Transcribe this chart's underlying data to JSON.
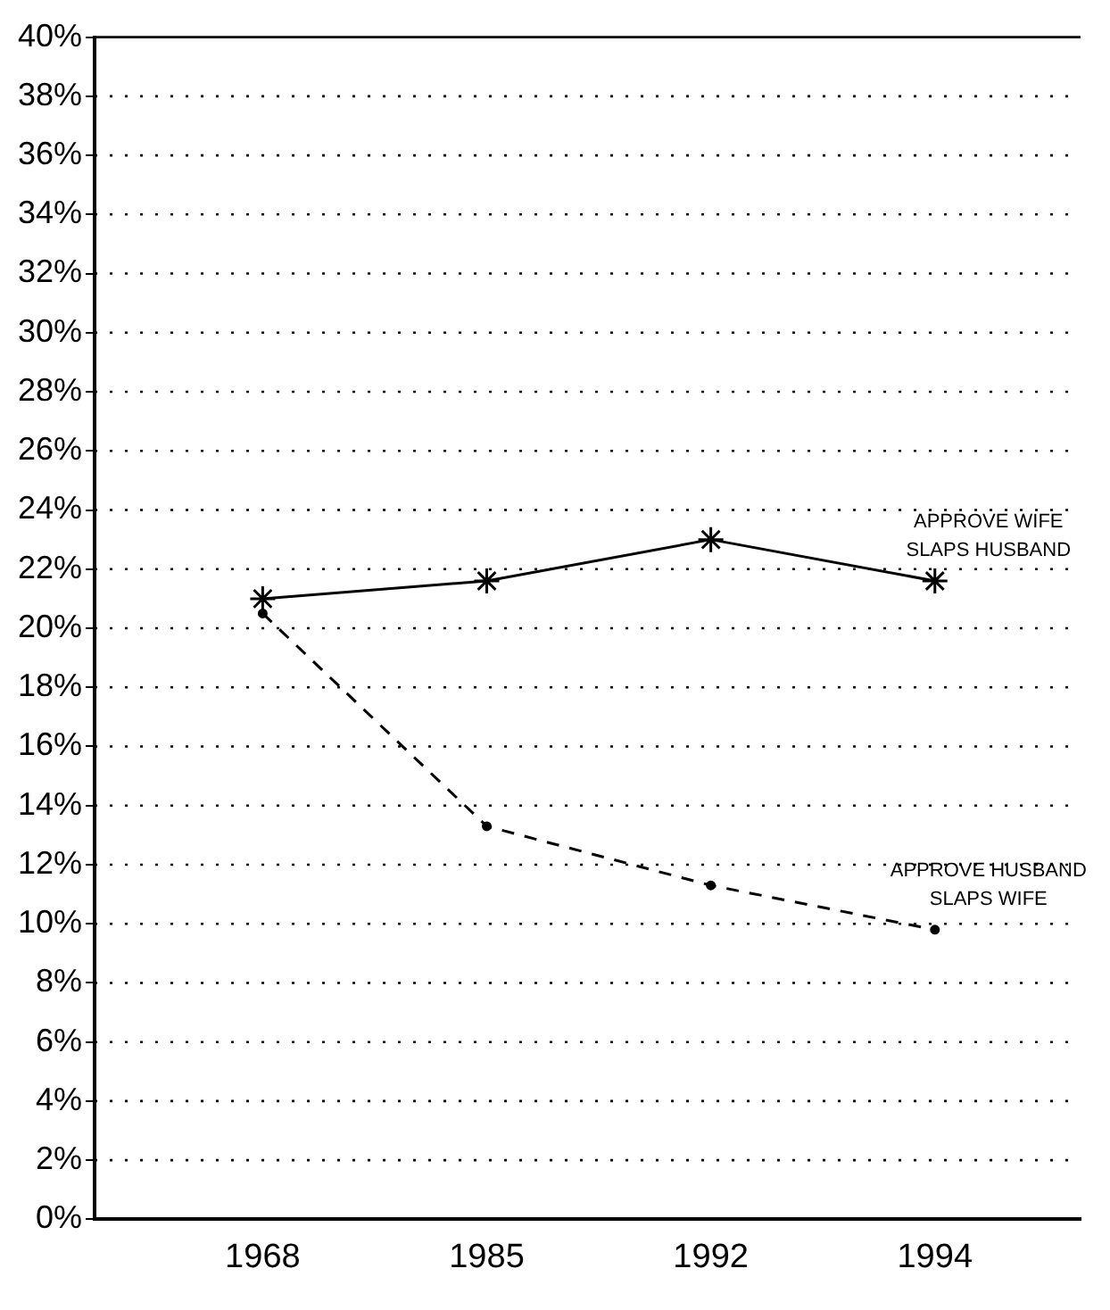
{
  "chart_data": {
    "type": "line",
    "categories": [
      "1968",
      "1985",
      "1992",
      "1994"
    ],
    "series": [
      {
        "name": "APPROVE WIFE SLAPS HUSBAND",
        "color": "#000000",
        "values": [
          21.0,
          21.6,
          23.0,
          21.6
        ],
        "marker": "cross",
        "line_style": "solid"
      },
      {
        "name": "APPROVE HUSBAND SLAPS WIFE",
        "color": "#000000",
        "values": [
          20.5,
          13.3,
          11.3,
          9.8
        ],
        "marker": "circle",
        "line_style": "dashed"
      }
    ],
    "ylim": [
      0,
      40
    ],
    "yticks": [
      {
        "value": 0,
        "label": "0%"
      },
      {
        "value": 2,
        "label": "2%"
      },
      {
        "value": 4,
        "label": "4%"
      },
      {
        "value": 6,
        "label": "6%"
      },
      {
        "value": 8,
        "label": "8%"
      },
      {
        "value": 10,
        "label": "10%"
      },
      {
        "value": 12,
        "label": "12%"
      },
      {
        "value": 14,
        "label": "14%"
      },
      {
        "value": 16,
        "label": "16%"
      },
      {
        "value": 18,
        "label": "18%"
      },
      {
        "value": 20,
        "label": "20%"
      },
      {
        "value": 22,
        "label": "22%"
      },
      {
        "value": 24,
        "label": "24%"
      },
      {
        "value": 26,
        "label": "26%"
      },
      {
        "value": 28,
        "label": "28%"
      },
      {
        "value": 30,
        "label": "30%"
      },
      {
        "value": 32,
        "label": "32%"
      },
      {
        "value": 34,
        "label": "34%"
      },
      {
        "value": 36,
        "label": "36%"
      },
      {
        "value": 38,
        "label": "38%"
      },
      {
        "value": 40,
        "label": "40%"
      }
    ],
    "grid": "y",
    "legend": false
  }
}
